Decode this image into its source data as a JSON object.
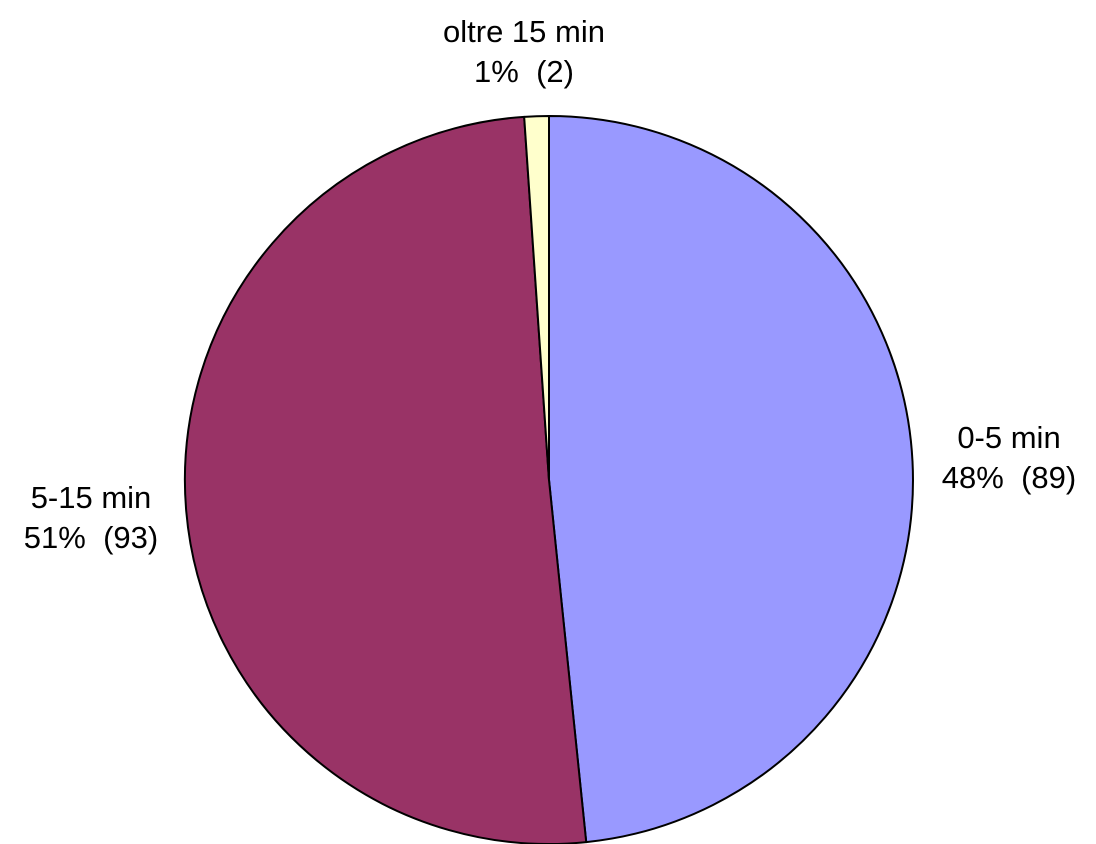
{
  "chart_data": {
    "type": "pie",
    "slices": [
      {
        "label": "0-5 min",
        "value": 89,
        "percent_label": "48%",
        "count_label": "(89)",
        "color": "#9999ff"
      },
      {
        "label": "5-15 min",
        "value": 93,
        "percent_label": "51%",
        "count_label": "(93)",
        "color": "#993366"
      },
      {
        "label": "oltre 15 min",
        "value": 2,
        "percent_label": "1%",
        "count_label": "(2)",
        "color": "#ffffcc"
      }
    ],
    "start_angle_deg": 0,
    "direction": "clockwise",
    "legend": "none"
  }
}
